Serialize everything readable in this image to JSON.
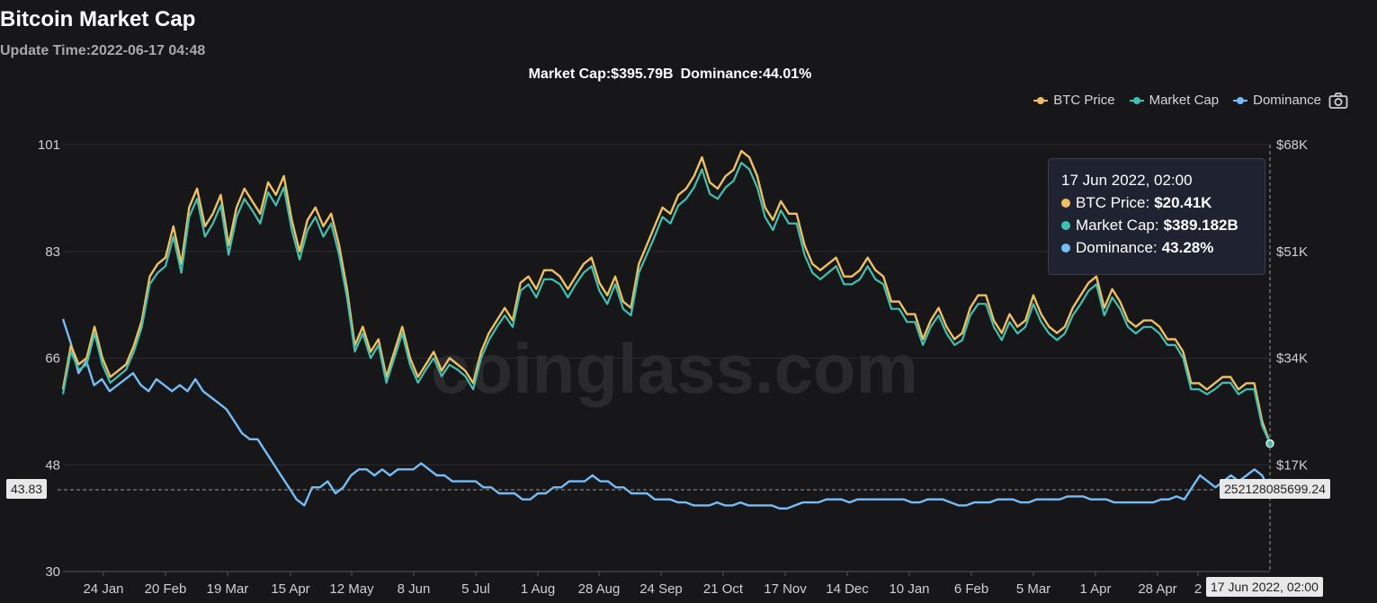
{
  "header": {
    "title": "Bitcoin Market Cap",
    "update_time": "Update Time:2022-06-17 04:48",
    "market_cap_summary": "Market Cap:$395.79B",
    "dominance_summary": "Dominance:44.01%"
  },
  "legend": [
    {
      "label": "BTC Price",
      "color": "#f0c05a"
    },
    {
      "label": "Market Cap",
      "color": "#3ec2b3"
    },
    {
      "label": "Dominance",
      "color": "#74bdf7"
    }
  ],
  "icons": {
    "camera": "camera-icon"
  },
  "watermark": "coinglass.com",
  "tooltip": {
    "date": "17 Jun 2022, 02:00",
    "rows": [
      {
        "label": "BTC Price:",
        "value": "$20.41K",
        "color": "#f0c05a"
      },
      {
        "label": "Market Cap:",
        "value": "$389.182B",
        "color": "#3ec2b3"
      },
      {
        "label": "Dominance:",
        "value": "43.28%",
        "color": "#74bdf7"
      }
    ]
  },
  "crosshair": {
    "left_value": "43.83",
    "right_value": "252128085699.24",
    "x_value": "17 Jun 2022, 02:00"
  },
  "chart_data": {
    "type": "line",
    "left_axis": {
      "ticks": [
        "101",
        "83",
        "66",
        "48",
        "30"
      ],
      "min": 30,
      "max": 101
    },
    "right_axis": {
      "ticks": [
        "$68K",
        "$51K",
        "$34K",
        "$17K"
      ],
      "min": 0,
      "max": 68
    },
    "x_ticks": [
      "24 Jan",
      "20 Feb",
      "19 Mar",
      "15 Apr",
      "12 May",
      "8 Jun",
      "5 Jul",
      "1 Aug",
      "28 Aug",
      "24 Sep",
      "21 Oct",
      "17 Nov",
      "14 Dec",
      "10 Jan",
      "6 Feb",
      "5 Mar",
      "1 Apr",
      "28 Apr",
      "2",
      "17 Jun 2022, 02:00"
    ],
    "x_range": [
      "2021-01-01",
      "2022-06-17"
    ],
    "series": [
      {
        "name": "BTC Price",
        "axis": "right",
        "unit": "$K",
        "values": [
          29,
          36,
          33,
          34,
          39,
          34,
          31,
          32,
          33,
          36,
          40,
          47,
          49,
          50,
          55,
          49,
          58,
          61,
          55,
          57,
          60,
          52,
          58,
          61,
          59,
          57,
          62,
          60,
          63,
          56,
          51,
          56,
          58,
          55,
          57,
          52,
          45,
          36,
          39,
          35,
          37,
          31,
          35,
          39,
          34,
          31,
          33,
          35,
          32,
          34,
          33,
          32,
          30,
          35,
          38,
          40,
          42,
          40,
          46,
          47,
          45,
          48,
          48,
          47,
          45,
          47,
          49,
          50,
          46,
          44,
          47,
          43,
          42,
          49,
          52,
          55,
          58,
          57,
          60,
          61,
          63,
          66,
          62,
          61,
          63,
          64,
          67,
          66,
          63,
          58,
          56,
          59,
          57,
          57,
          52,
          49,
          48,
          49,
          50,
          47,
          47,
          48,
          50,
          48,
          47,
          43,
          43,
          41,
          41,
          37,
          40,
          42,
          39,
          37,
          38,
          42,
          44,
          44,
          40,
          38,
          41,
          39,
          40,
          44,
          41,
          39,
          38,
          39,
          42,
          44,
          46,
          47,
          42,
          45,
          43,
          40,
          39,
          40,
          40,
          39,
          37,
          37,
          35,
          30,
          30,
          29,
          30,
          31,
          31,
          29,
          30,
          30,
          24,
          20.41
        ]
      },
      {
        "name": "Market Cap",
        "axis": "right",
        "unit": "$B",
        "values": [
          540,
          670,
          615,
          630,
          725,
          630,
          575,
          595,
          615,
          670,
          745,
          875,
          910,
          930,
          1020,
          910,
          1080,
          1135,
          1020,
          1060,
          1115,
          965,
          1080,
          1135,
          1100,
          1060,
          1155,
          1115,
          1170,
          1040,
          950,
          1040,
          1080,
          1020,
          1060,
          965,
          835,
          670,
          725,
          650,
          690,
          575,
          650,
          725,
          630,
          575,
          615,
          650,
          595,
          630,
          615,
          595,
          555,
          650,
          705,
          745,
          780,
          745,
          855,
          875,
          835,
          890,
          890,
          875,
          835,
          875,
          910,
          930,
          855,
          815,
          875,
          800,
          780,
          910,
          965,
          1020,
          1080,
          1060,
          1115,
          1135,
          1170,
          1225,
          1150,
          1135,
          1170,
          1190,
          1245,
          1225,
          1170,
          1080,
          1040,
          1100,
          1060,
          1060,
          965,
          910,
          890,
          910,
          930,
          875,
          875,
          890,
          930,
          890,
          875,
          800,
          800,
          760,
          760,
          690,
          745,
          780,
          725,
          690,
          705,
          780,
          815,
          815,
          745,
          705,
          760,
          725,
          745,
          815,
          760,
          725,
          705,
          725,
          780,
          815,
          855,
          875,
          780,
          835,
          800,
          745,
          725,
          745,
          745,
          725,
          690,
          690,
          650,
          555,
          555,
          540,
          555,
          575,
          575,
          540,
          555,
          555,
          445,
          389.182
        ]
      },
      {
        "name": "Dominance",
        "axis": "left",
        "unit": "%",
        "values": [
          72,
          68,
          63,
          65,
          61,
          62,
          60,
          61,
          62,
          63,
          61,
          60,
          62,
          61,
          60,
          61,
          60,
          62,
          60,
          59,
          58,
          57,
          55,
          53,
          52,
          52,
          50,
          48,
          46,
          44,
          42,
          41,
          44,
          44,
          45,
          43,
          44,
          46,
          47,
          47,
          46,
          47,
          46,
          47,
          47,
          47,
          48,
          47,
          46,
          46,
          45,
          45,
          45,
          45,
          44,
          44,
          43,
          43,
          43,
          42,
          42,
          43,
          43,
          44,
          44,
          45,
          45,
          45,
          46,
          45,
          45,
          44,
          44,
          43,
          43,
          43,
          42,
          42,
          42,
          41.5,
          41.5,
          41,
          41,
          41,
          41.5,
          41,
          41,
          41.5,
          41,
          41,
          41,
          41,
          40.5,
          40.5,
          41,
          41.5,
          41.5,
          41.5,
          42,
          42,
          42,
          41.5,
          42,
          42,
          42,
          42,
          42,
          42,
          42,
          41.5,
          41.5,
          42,
          42,
          42,
          41.5,
          41,
          41,
          41.5,
          41.5,
          41.5,
          42,
          42,
          42,
          41.5,
          41.5,
          42,
          42,
          42,
          42,
          42.5,
          42.5,
          42.5,
          42,
          42,
          42,
          41.5,
          41.5,
          41.5,
          41.5,
          41.5,
          41.5,
          42,
          42,
          42.5,
          42,
          44,
          46,
          45,
          44,
          45,
          46,
          45,
          46,
          47,
          46,
          43.28
        ]
      }
    ],
    "grid": true,
    "legend_position": "top-right"
  }
}
